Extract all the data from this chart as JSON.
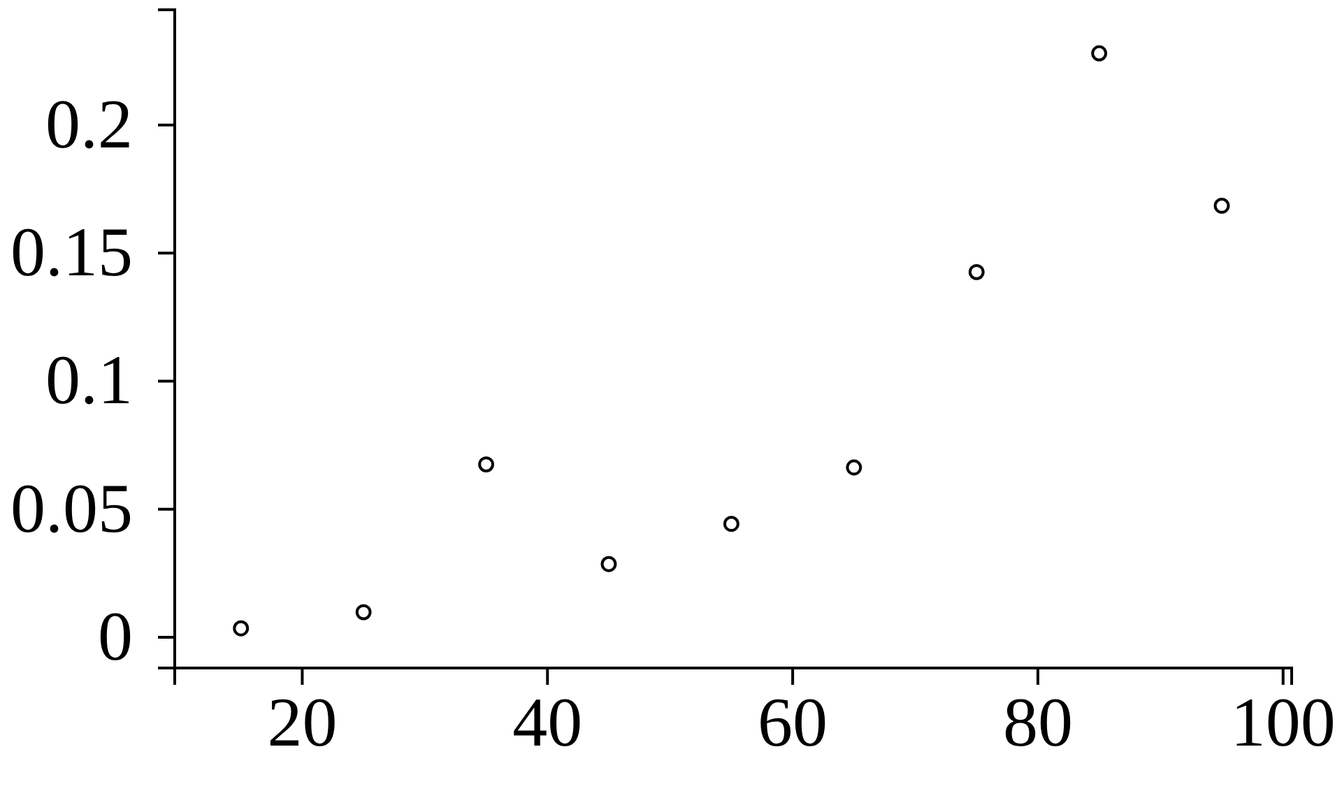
{
  "chart_data": {
    "type": "scatter",
    "x": [
      15,
      25,
      35,
      45,
      55,
      65,
      75,
      85,
      95
    ],
    "values": [
      0.0035,
      0.0098,
      0.0675,
      0.0286,
      0.0443,
      0.0663,
      0.1426,
      0.228,
      0.1685
    ],
    "color": "#000000",
    "marker": "circle",
    "xlim": [
      9.6,
      100.7
    ],
    "ylim": [
      -0.012,
      0.245
    ],
    "xticks": [
      20,
      40,
      60,
      80,
      100
    ],
    "yticks": [
      0,
      0.05,
      0.1,
      0.15,
      0.2
    ]
  }
}
